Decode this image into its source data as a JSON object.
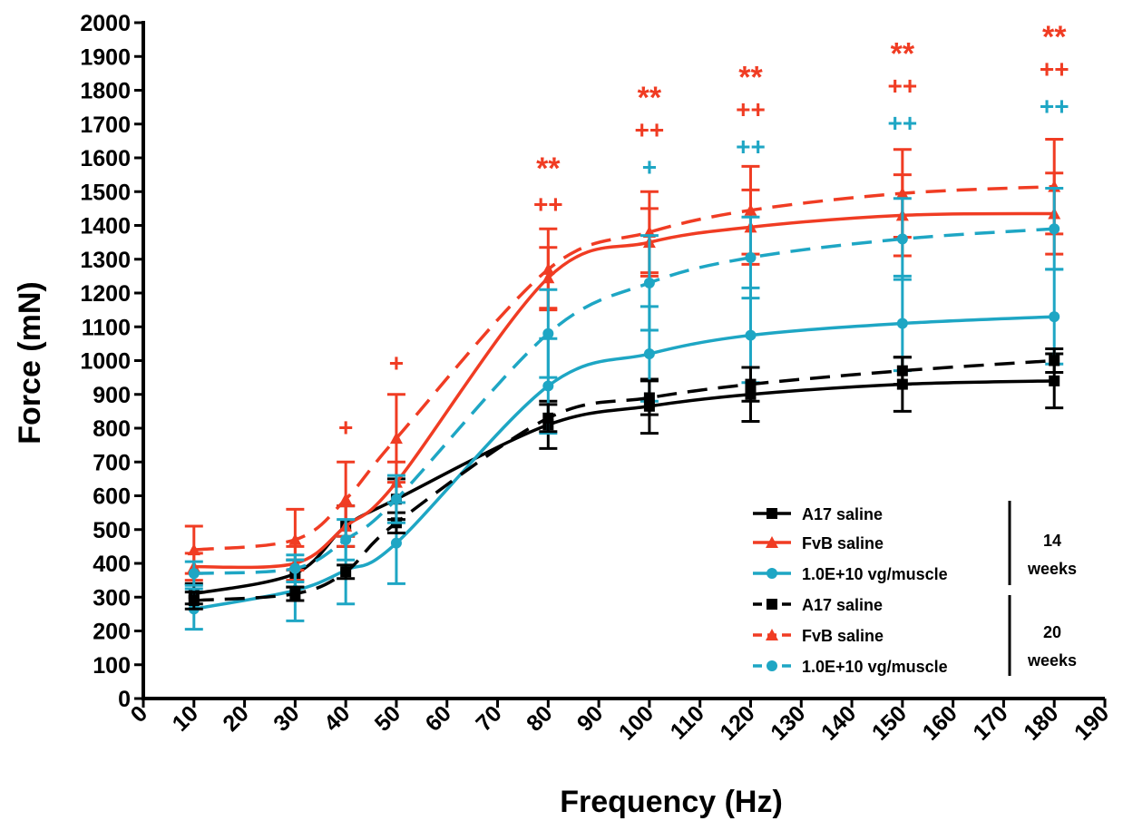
{
  "colors": {
    "a17": "#000000",
    "fvb": "#f03c23",
    "treated": "#1ea6c4"
  },
  "chart_data": {
    "type": "line",
    "title": "",
    "xlabel": "Frequency (Hz)",
    "ylabel": "Force (mN)",
    "xlim": [
      0,
      190
    ],
    "ylim": [
      0,
      2000
    ],
    "xticks": [
      "0",
      "10",
      "20",
      "30",
      "40",
      "50",
      "60",
      "70",
      "80",
      "90",
      "100",
      "110",
      "120",
      "130",
      "140",
      "150",
      "160",
      "170",
      "180",
      "190"
    ],
    "yticks": [
      "0",
      "100",
      "200",
      "300",
      "400",
      "500",
      "600",
      "700",
      "800",
      "900",
      "1000",
      "1100",
      "1200",
      "1300",
      "1400",
      "1500",
      "1600",
      "1700",
      "1800",
      "1900",
      "2000"
    ],
    "grid": false,
    "legend_position": "bottom-right",
    "x": [
      10,
      30,
      40,
      50,
      80,
      100,
      120,
      150,
      180
    ],
    "series": [
      {
        "name": "A17 saline",
        "group": "14",
        "style": "solid",
        "color": "#000000",
        "marker": "square",
        "values": [
          310,
          370,
          510,
          590,
          810,
          865,
          900,
          930,
          940
        ],
        "errors": [
          30,
          40,
          60,
          60,
          70,
          80,
          80,
          80,
          80
        ]
      },
      {
        "name": "FvB saline",
        "group": "14",
        "style": "solid",
        "color": "#f03c23",
        "marker": "triangle",
        "values": [
          390,
          400,
          510,
          640,
          1245,
          1350,
          1395,
          1430,
          1435
        ],
        "errors": [
          40,
          50,
          60,
          60,
          90,
          100,
          110,
          120,
          120
        ]
      },
      {
        "name": "1.0E+10 vg/muscle",
        "group": "14",
        "style": "solid",
        "color": "#1ea6c4",
        "marker": "circle",
        "values": [
          265,
          320,
          380,
          460,
          925,
          1020,
          1075,
          1110,
          1130
        ],
        "errors": [
          60,
          90,
          100,
          120,
          140,
          140,
          140,
          140,
          140
        ]
      },
      {
        "name": "A17 saline",
        "group": "20",
        "style": "dashed",
        "color": "#000000",
        "marker": "square",
        "values": [
          290,
          310,
          375,
          520,
          830,
          890,
          930,
          970,
          1000
        ],
        "errors": [
          25,
          20,
          20,
          30,
          40,
          50,
          50,
          40,
          35
        ]
      },
      {
        "name": "FvB saline",
        "group": "20",
        "style": "dashed",
        "color": "#f03c23",
        "marker": "triangle",
        "values": [
          440,
          470,
          590,
          770,
          1270,
          1380,
          1445,
          1495,
          1515
        ],
        "errors": [
          70,
          90,
          110,
          130,
          120,
          120,
          130,
          130,
          140
        ]
      },
      {
        "name": "1.0E+10 vg/muscle",
        "group": "20",
        "style": "dashed",
        "color": "#1ea6c4",
        "marker": "circle",
        "values": [
          370,
          385,
          470,
          590,
          1080,
          1230,
          1305,
          1360,
          1390
        ],
        "errors": [
          35,
          40,
          60,
          70,
          130,
          140,
          120,
          120,
          120
        ]
      }
    ],
    "legend_groups": [
      {
        "label_num": "14",
        "label_unit": "weeks"
      },
      {
        "label_num": "20",
        "label_unit": "weeks"
      }
    ],
    "annotations": [
      {
        "x": 40,
        "y": 810,
        "text": "+",
        "color": "#f03c23"
      },
      {
        "x": 50,
        "y": 1000,
        "text": "+",
        "color": "#f03c23"
      },
      {
        "x": 80,
        "y": 1470,
        "text": "++",
        "color": "#f03c23"
      },
      {
        "x": 80,
        "y": 1570,
        "text": "**",
        "color": "#f03c23"
      },
      {
        "x": 100,
        "y": 1580,
        "text": "+",
        "color": "#1ea6c4"
      },
      {
        "x": 100,
        "y": 1690,
        "text": "++",
        "color": "#f03c23"
      },
      {
        "x": 100,
        "y": 1780,
        "text": "**",
        "color": "#f03c23"
      },
      {
        "x": 120,
        "y": 1640,
        "text": "++",
        "color": "#1ea6c4"
      },
      {
        "x": 120,
        "y": 1750,
        "text": "++",
        "color": "#f03c23"
      },
      {
        "x": 120,
        "y": 1840,
        "text": "**",
        "color": "#f03c23"
      },
      {
        "x": 150,
        "y": 1710,
        "text": "++",
        "color": "#1ea6c4"
      },
      {
        "x": 150,
        "y": 1820,
        "text": "++",
        "color": "#f03c23"
      },
      {
        "x": 150,
        "y": 1910,
        "text": "**",
        "color": "#f03c23"
      },
      {
        "x": 180,
        "y": 1760,
        "text": "++",
        "color": "#1ea6c4"
      },
      {
        "x": 180,
        "y": 1870,
        "text": "++",
        "color": "#f03c23"
      },
      {
        "x": 180,
        "y": 1960,
        "text": "**",
        "color": "#f03c23"
      }
    ]
  }
}
